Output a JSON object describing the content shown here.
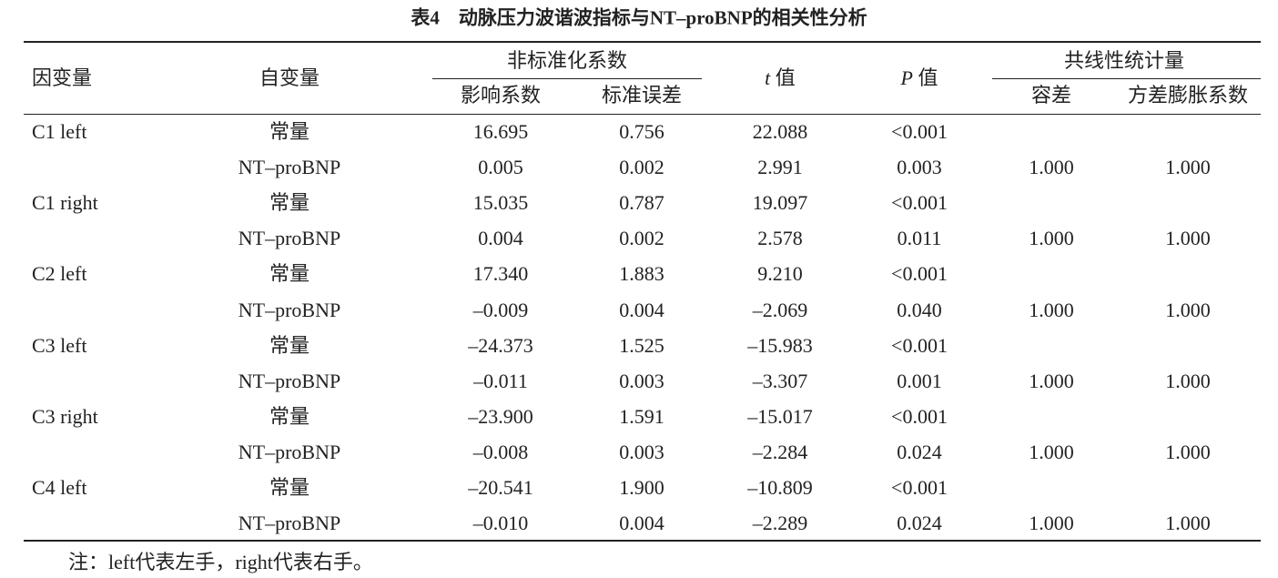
{
  "title": "表4　动脉压力波谐波指标与NT–proBNP的相关性分析",
  "header": {
    "dependent": "因变量",
    "independent": "自变量",
    "unstandardized": "非标准化系数",
    "coef": "影响系数",
    "se": "标准误差",
    "t_symbol": "t",
    "t_label": "值",
    "p_symbol": "P",
    "p_label": "值",
    "collinearity": "共线性统计量",
    "tolerance": "容差",
    "vif": "方差膨胀系数"
  },
  "table": {
    "rows": [
      [
        "C1 left",
        "常量",
        "16.695",
        "0.756",
        "22.088",
        "<0.001",
        null,
        null
      ],
      [
        null,
        "NT–proBNP",
        "0.005",
        "0.002",
        "2.991",
        "0.003",
        "1.000",
        "1.000"
      ],
      [
        "C1 right",
        "常量",
        "15.035",
        "0.787",
        "19.097",
        "<0.001",
        null,
        null
      ],
      [
        null,
        "NT–proBNP",
        "0.004",
        "0.002",
        "2.578",
        "0.011",
        "1.000",
        "1.000"
      ],
      [
        "C2 left",
        "常量",
        "17.340",
        "1.883",
        "9.210",
        "<0.001",
        null,
        null
      ],
      [
        null,
        "NT–proBNP",
        "–0.009",
        "0.004",
        "–2.069",
        "0.040",
        "1.000",
        "1.000"
      ],
      [
        "C3 left",
        "常量",
        "–24.373",
        "1.525",
        "–15.983",
        "<0.001",
        null,
        null
      ],
      [
        null,
        "NT–proBNP",
        "–0.011",
        "0.003",
        "–3.307",
        "0.001",
        "1.000",
        "1.000"
      ],
      [
        "C3 right",
        "常量",
        "–23.900",
        "1.591",
        "–15.017",
        "<0.001",
        null,
        null
      ],
      [
        null,
        "NT–proBNP",
        "–0.008",
        "0.003",
        "–2.284",
        "0.024",
        "1.000",
        "1.000"
      ],
      [
        "C4 left",
        "常量",
        "–20.541",
        "1.900",
        "–10.809",
        "<0.001",
        null,
        null
      ],
      [
        null,
        "NT–proBNP",
        "–0.010",
        "0.004",
        "–2.289",
        "0.024",
        "1.000",
        "1.000"
      ]
    ]
  },
  "note": "注：left代表左手，right代表右手。"
}
